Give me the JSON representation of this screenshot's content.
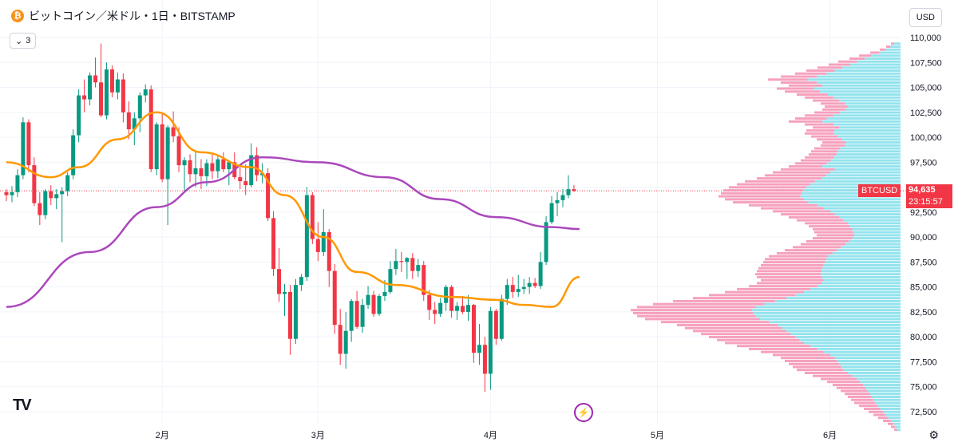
{
  "header": {
    "title": "ビットコイン／米ドル・1日・BITSTAMP",
    "coin_icon": "bitcoin-icon"
  },
  "collapse_button": {
    "label": "3",
    "icon": "chevron-down-icon"
  },
  "currency_button": {
    "label": "USD"
  },
  "logo": {
    "text": "TV"
  },
  "chart_data": {
    "type": "candlestick",
    "symbol": "BTCUSD",
    "y_range": [
      72500,
      110000
    ],
    "y_ticks": [
      {
        "value": 110000,
        "label": "110,000"
      },
      {
        "value": 107500,
        "label": "107,500"
      },
      {
        "value": 105000,
        "label": "105,000"
      },
      {
        "value": 102500,
        "label": "102,500"
      },
      {
        "value": 100000,
        "label": "100,000"
      },
      {
        "value": 97500,
        "label": "97,500"
      },
      {
        "value": 95000,
        "label": "95,000"
      },
      {
        "value": 92500,
        "label": "92,500"
      },
      {
        "value": 90000,
        "label": "90,000"
      },
      {
        "value": 87500,
        "label": "87,500"
      },
      {
        "value": 85000,
        "label": "85,000"
      },
      {
        "value": 82500,
        "label": "82,500"
      },
      {
        "value": 80000,
        "label": "80,000"
      },
      {
        "value": 77500,
        "label": "77,500"
      },
      {
        "value": 75000,
        "label": "75,000"
      },
      {
        "value": 72500,
        "label": "72,500"
      }
    ],
    "x_ticks": [
      {
        "label": "2月",
        "index": 28
      },
      {
        "label": "3月",
        "index": 56
      },
      {
        "label": "4月",
        "index": 87
      },
      {
        "label": "5月",
        "index": 117
      },
      {
        "label": "6月",
        "index": 148
      }
    ],
    "last_price": {
      "value": 94635,
      "label": "94,635",
      "countdown": "23:15:57"
    },
    "candles": [
      [
        94500,
        94800,
        93600,
        94200
      ],
      [
        94200,
        95100,
        93500,
        94500
      ],
      [
        94500,
        96800,
        94000,
        96200
      ],
      [
        96200,
        102000,
        95800,
        101500
      ],
      [
        101500,
        101800,
        96500,
        97200
      ],
      [
        97200,
        98000,
        93100,
        93400
      ],
      [
        93400,
        94500,
        91200,
        92200
      ],
      [
        92200,
        94800,
        91800,
        94600
      ],
      [
        94600,
        95200,
        93200,
        93900
      ],
      [
        93900,
        94800,
        92800,
        94300
      ],
      [
        94300,
        95000,
        89500,
        94600
      ],
      [
        94600,
        96500,
        94100,
        96200
      ],
      [
        96200,
        100800,
        95800,
        100200
      ],
      [
        100200,
        104800,
        99500,
        104200
      ],
      [
        104200,
        105800,
        102500,
        103800
      ],
      [
        103800,
        106500,
        103200,
        106200
      ],
      [
        106200,
        108000,
        105000,
        105500
      ],
      [
        105500,
        109400,
        102000,
        102200
      ],
      [
        102200,
        107500,
        101800,
        106800
      ],
      [
        106800,
        107200,
        104000,
        104500
      ],
      [
        104500,
        106500,
        103800,
        105800
      ],
      [
        105800,
        106400,
        101500,
        102500
      ],
      [
        102500,
        103600,
        99800,
        100800
      ],
      [
        100800,
        102500,
        99200,
        101900
      ],
      [
        101900,
        104500,
        100500,
        104200
      ],
      [
        104200,
        105300,
        103500,
        104800
      ],
      [
        104800,
        105200,
        96500,
        96800
      ],
      [
        96800,
        101500,
        96200,
        101300
      ],
      [
        101300,
        102400,
        95500,
        95800
      ],
      [
        95800,
        101200,
        91200,
        101000
      ],
      [
        101000,
        102600,
        99500,
        100100
      ],
      [
        100100,
        101000,
        96500,
        97200
      ],
      [
        97200,
        98000,
        94500,
        97700
      ],
      [
        97700,
        98300,
        95500,
        96300
      ],
      [
        96300,
        98500,
        95000,
        96900
      ],
      [
        96900,
        97800,
        94800,
        96100
      ],
      [
        96100,
        97800,
        95100,
        97400
      ],
      [
        97400,
        98400,
        95800,
        96600
      ],
      [
        96600,
        98200,
        95900,
        97800
      ],
      [
        97800,
        98500,
        96500,
        96800
      ],
      [
        96800,
        97700,
        95200,
        97500
      ],
      [
        97500,
        98500,
        95800,
        96000
      ],
      [
        96000,
        97000,
        94800,
        95600
      ],
      [
        95600,
        97300,
        94200,
        95200
      ],
      [
        95200,
        99400,
        95000,
        98200
      ],
      [
        98200,
        99000,
        95600,
        96200
      ],
      [
        96200,
        97400,
        95400,
        96400
      ],
      [
        96400,
        96900,
        91600,
        91900
      ],
      [
        91900,
        92600,
        86100,
        86800
      ],
      [
        86800,
        88900,
        83500,
        84300
      ],
      [
        84300,
        85300,
        82100,
        84500
      ],
      [
        84500,
        85200,
        78200,
        79800
      ],
      [
        79800,
        85800,
        79300,
        85200
      ],
      [
        85200,
        86300,
        84600,
        86000
      ],
      [
        86000,
        95000,
        85600,
        94200
      ],
      [
        94200,
        94500,
        89300,
        89800
      ],
      [
        89800,
        91500,
        87600,
        88500
      ],
      [
        88500,
        92800,
        88100,
        90500
      ],
      [
        90500,
        90800,
        85000,
        86600
      ],
      [
        86600,
        87300,
        80300,
        81200
      ],
      [
        81200,
        82800,
        77200,
        78300
      ],
      [
        78300,
        82500,
        76800,
        80600
      ],
      [
        80600,
        83800,
        79500,
        83600
      ],
      [
        83600,
        84600,
        80800,
        81000
      ],
      [
        81000,
        83800,
        80400,
        83200
      ],
      [
        83200,
        85100,
        82800,
        84200
      ],
      [
        84200,
        84600,
        82000,
        82300
      ],
      [
        82300,
        84300,
        82100,
        84100
      ],
      [
        84100,
        85700,
        83600,
        84500
      ],
      [
        84500,
        87600,
        84300,
        86800
      ],
      [
        86800,
        88800,
        86200,
        87600
      ],
      [
        87600,
        88500,
        86500,
        87500
      ],
      [
        87500,
        88000,
        85800,
        87900
      ],
      [
        87900,
        88400,
        85800,
        86600
      ],
      [
        86600,
        87800,
        86000,
        87200
      ],
      [
        87200,
        87600,
        83600,
        84200
      ],
      [
        84200,
        84700,
        81700,
        82700
      ],
      [
        82700,
        83500,
        81300,
        82300
      ],
      [
        82300,
        83900,
        82000,
        83400
      ],
      [
        83400,
        85200,
        82600,
        85000
      ],
      [
        85000,
        85200,
        81900,
        82600
      ],
      [
        82600,
        83500,
        81700,
        83100
      ],
      [
        83100,
        84100,
        82300,
        82500
      ],
      [
        82500,
        84200,
        81600,
        83200
      ],
      [
        83200,
        83300,
        77400,
        78400
      ],
      [
        78400,
        81300,
        77200,
        79200
      ],
      [
        79200,
        80000,
        74500,
        76300
      ],
      [
        76300,
        83000,
        74700,
        82600
      ],
      [
        82600,
        82800,
        79200,
        79800
      ],
      [
        79800,
        84200,
        79600,
        83800
      ],
      [
        83800,
        85800,
        83200,
        85200
      ],
      [
        85200,
        86000,
        83900,
        84500
      ],
      [
        84500,
        86200,
        84000,
        84800
      ],
      [
        84800,
        85800,
        84300,
        85000
      ],
      [
        85000,
        86000,
        84300,
        85400
      ],
      [
        85400,
        85900,
        84900,
        85100
      ],
      [
        85100,
        88500,
        84800,
        87500
      ],
      [
        87500,
        92100,
        87200,
        91500
      ],
      [
        91500,
        94100,
        91300,
        93400
      ],
      [
        93400,
        94500,
        92100,
        93700
      ],
      [
        93700,
        94800,
        93000,
        94200
      ],
      [
        94200,
        96200,
        93900,
        94800
      ],
      [
        94800,
        95200,
        94500,
        94635
      ]
    ],
    "ma_short": {
      "color": "#ff9800",
      "anchors": [
        [
          0,
          97500
        ],
        [
          8,
          96000
        ],
        [
          13,
          97000
        ],
        [
          20,
          99800
        ],
        [
          27,
          102500
        ],
        [
          35,
          98500
        ],
        [
          44,
          97000
        ],
        [
          50,
          94200
        ],
        [
          57,
          90000
        ],
        [
          63,
          86500
        ],
        [
          70,
          85200
        ],
        [
          80,
          84000
        ],
        [
          88,
          83700
        ],
        [
          93,
          83200
        ],
        [
          98,
          83000
        ],
        [
          103,
          86000
        ]
      ]
    },
    "ma_long": {
      "color": "#ab47bc",
      "anchors": [
        [
          0,
          83000
        ],
        [
          15,
          88500
        ],
        [
          27,
          93000
        ],
        [
          36,
          95500
        ],
        [
          46,
          98000
        ],
        [
          56,
          97500
        ],
        [
          68,
          96000
        ],
        [
          78,
          93800
        ],
        [
          88,
          92000
        ],
        [
          98,
          91000
        ],
        [
          103,
          90800
        ]
      ]
    },
    "volume_profile": {
      "top_price": 109500,
      "step": 300,
      "rows": [
        [
          12,
          0
        ],
        [
          18,
          0
        ],
        [
          26,
          0
        ],
        [
          38,
          0
        ],
        [
          52,
          0
        ],
        [
          64,
          0
        ],
        [
          78,
          0
        ],
        [
          90,
          0
        ],
        [
          104,
          0
        ],
        [
          118,
          0
        ],
        [
          132,
          0
        ],
        [
          150,
          0
        ],
        [
          166,
          0
        ],
        [
          150,
          0
        ],
        [
          140,
          0
        ],
        [
          155,
          0
        ],
        [
          145,
          0
        ],
        [
          130,
          0
        ],
        [
          120,
          0
        ],
        [
          110,
          0
        ],
        [
          100,
          0
        ],
        [
          95,
          0
        ],
        [
          98,
          0
        ],
        [
          108,
          0
        ],
        [
          120,
          0
        ],
        [
          132,
          0
        ],
        [
          140,
          0
        ],
        [
          120,
          0
        ],
        [
          110,
          0
        ],
        [
          118,
          0
        ],
        [
          120,
          0
        ],
        [
          112,
          0
        ],
        [
          105,
          0
        ],
        [
          98,
          0
        ],
        [
          100,
          0
        ],
        [
          108,
          0
        ],
        [
          112,
          0
        ],
        [
          115,
          0
        ],
        [
          120,
          0
        ],
        [
          125,
          0
        ],
        [
          132,
          0
        ],
        [
          140,
          0
        ],
        [
          150,
          0
        ],
        [
          160,
          0
        ],
        [
          170,
          0
        ],
        [
          180,
          0
        ],
        [
          195,
          0
        ],
        [
          205,
          0
        ],
        [
          215,
          0
        ],
        [
          222,
          0
        ],
        [
          225,
          0
        ],
        [
          228,
          0
        ],
        [
          220,
          0
        ],
        [
          210,
          0
        ],
        [
          190,
          0
        ],
        [
          175,
          0
        ],
        [
          160,
          0
        ],
        [
          150,
          0
        ],
        [
          140,
          0
        ],
        [
          130,
          0
        ],
        [
          120,
          0
        ],
        [
          115,
          0
        ],
        [
          110,
          0
        ],
        [
          108,
          0
        ],
        [
          105,
          0
        ],
        [
          110,
          0
        ],
        [
          118,
          0
        ],
        [
          125,
          0
        ],
        [
          135,
          0
        ],
        [
          145,
          0
        ],
        [
          155,
          0
        ],
        [
          165,
          0
        ],
        [
          170,
          0
        ],
        [
          172,
          0
        ],
        [
          175,
          0
        ],
        [
          178,
          0
        ],
        [
          180,
          0
        ],
        [
          182,
          0
        ],
        [
          180,
          0
        ],
        [
          175,
          0
        ],
        [
          180,
          0
        ],
        [
          190,
          0
        ],
        [
          205,
          0
        ],
        [
          220,
          0
        ],
        [
          240,
          0
        ],
        [
          260,
          0
        ],
        [
          285,
          0
        ],
        [
          310,
          0
        ],
        [
          330,
          0
        ],
        [
          338,
          0
        ],
        [
          335,
          0
        ],
        [
          330,
          0
        ],
        [
          320,
          0
        ],
        [
          300,
          0
        ],
        [
          280,
          0
        ],
        [
          270,
          0
        ],
        [
          260,
          0
        ],
        [
          250,
          0
        ],
        [
          240,
          0
        ],
        [
          230,
          0
        ],
        [
          220,
          0
        ],
        [
          205,
          0
        ],
        [
          190,
          0
        ],
        [
          175,
          0
        ],
        [
          160,
          0
        ],
        [
          150,
          0
        ],
        [
          145,
          0
        ],
        [
          140,
          0
        ],
        [
          135,
          0
        ],
        [
          130,
          0
        ],
        [
          120,
          0
        ],
        [
          110,
          0
        ],
        [
          100,
          0
        ],
        [
          92,
          0
        ],
        [
          85,
          0
        ],
        [
          80,
          0
        ],
        [
          75,
          0
        ],
        [
          70,
          0
        ],
        [
          66,
          0
        ],
        [
          62,
          0
        ],
        [
          58,
          0
        ],
        [
          52,
          0
        ],
        [
          46,
          0
        ],
        [
          40,
          0
        ],
        [
          34,
          0
        ],
        [
          28,
          0
        ],
        [
          22,
          0
        ],
        [
          16,
          0
        ],
        [
          12,
          0
        ],
        [
          8,
          0
        ]
      ]
    }
  }
}
